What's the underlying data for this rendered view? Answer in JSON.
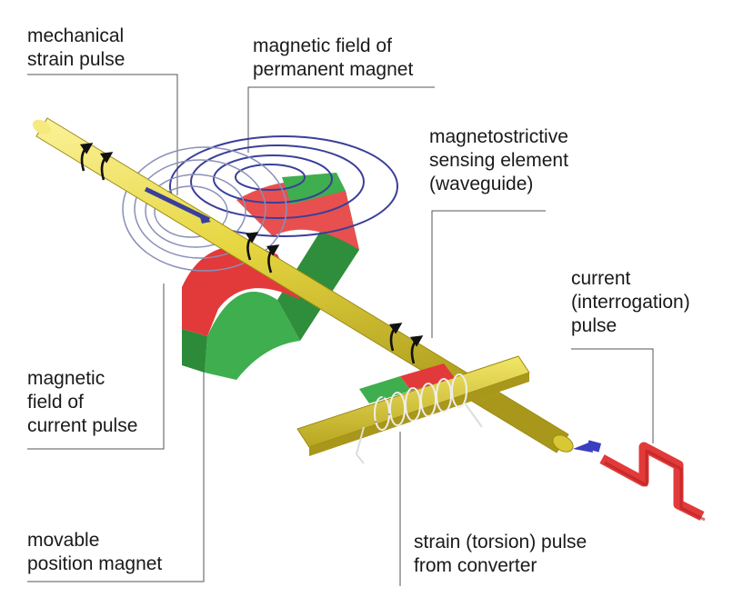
{
  "labels": {
    "mechanical_strain_pulse": [
      "mechanical",
      "strain pulse"
    ],
    "field_permanent_magnet": [
      "magnetic field of",
      "permanent magnet"
    ],
    "sensing_element": [
      "magnetostrictive",
      "sensing element",
      "(waveguide)"
    ],
    "current_pulse": [
      "current",
      "(interrogation)",
      "pulse"
    ],
    "field_current_pulse": [
      "magnetic",
      "field of",
      "current pulse"
    ],
    "position_magnet": [
      "movable",
      "position magnet"
    ],
    "strain_pulse_converter": [
      "strain (torsion) pulse",
      "from converter"
    ]
  },
  "colors": {
    "rod": "#e9db4a",
    "rod_dark": "#b7a51e",
    "magnet_red": "#e23a3a",
    "magnet_green": "#3fae4e",
    "field_lines": "#3a3f9a",
    "leader_lines": "#555555"
  },
  "icons": [
    "circular-arrow-icon",
    "strain-pulse-arrow-icon",
    "current-pulse-waveform-icon"
  ]
}
